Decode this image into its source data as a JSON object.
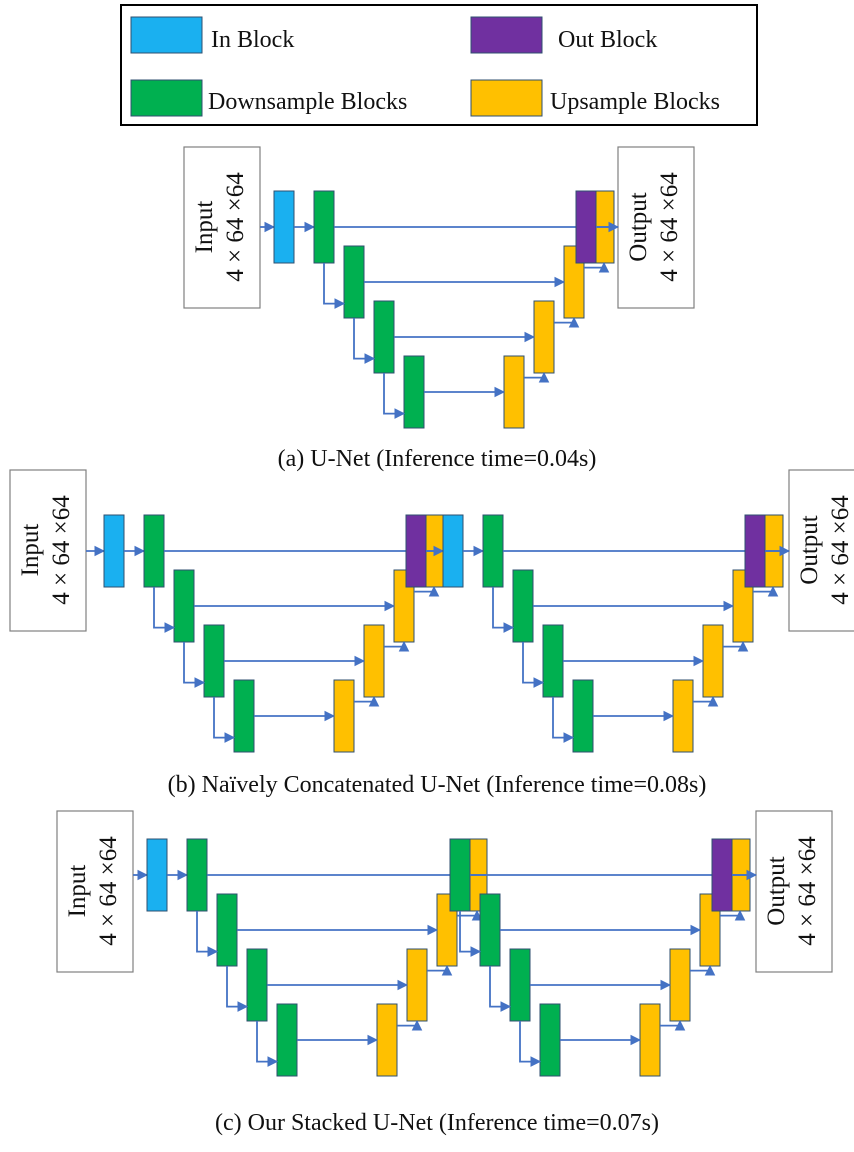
{
  "legend": {
    "items": [
      {
        "label": "In Block",
        "color": "#1ab0f0"
      },
      {
        "label": "Out Block",
        "color": "#7030a0"
      },
      {
        "label": "Downsample Blocks",
        "color": "#00b050"
      },
      {
        "label": "Upsample Blocks",
        "color": "#ffc000"
      }
    ]
  },
  "colors": {
    "in_block": "#1ab0f0",
    "out_block": "#7030a0",
    "downsample_block": "#00b050",
    "upsample_block": "#ffc000",
    "connection": "#4472c4"
  },
  "io": {
    "input_label": "Input",
    "output_label": "Output",
    "shape": "4 × 64 ×64"
  },
  "diagrams": [
    {
      "id": "a",
      "caption": "(a) U-Net (Inference time=0.04s)",
      "unets": 1,
      "mode": "single"
    },
    {
      "id": "b",
      "caption": "(b) Naïvely Concatenated U-Net (Inference time=0.08s)",
      "unets": 2,
      "mode": "concatenated"
    },
    {
      "id": "c",
      "caption": "(c) Our Stacked U-Net (Inference time=0.07s)",
      "unets": 2,
      "mode": "stacked"
    }
  ]
}
